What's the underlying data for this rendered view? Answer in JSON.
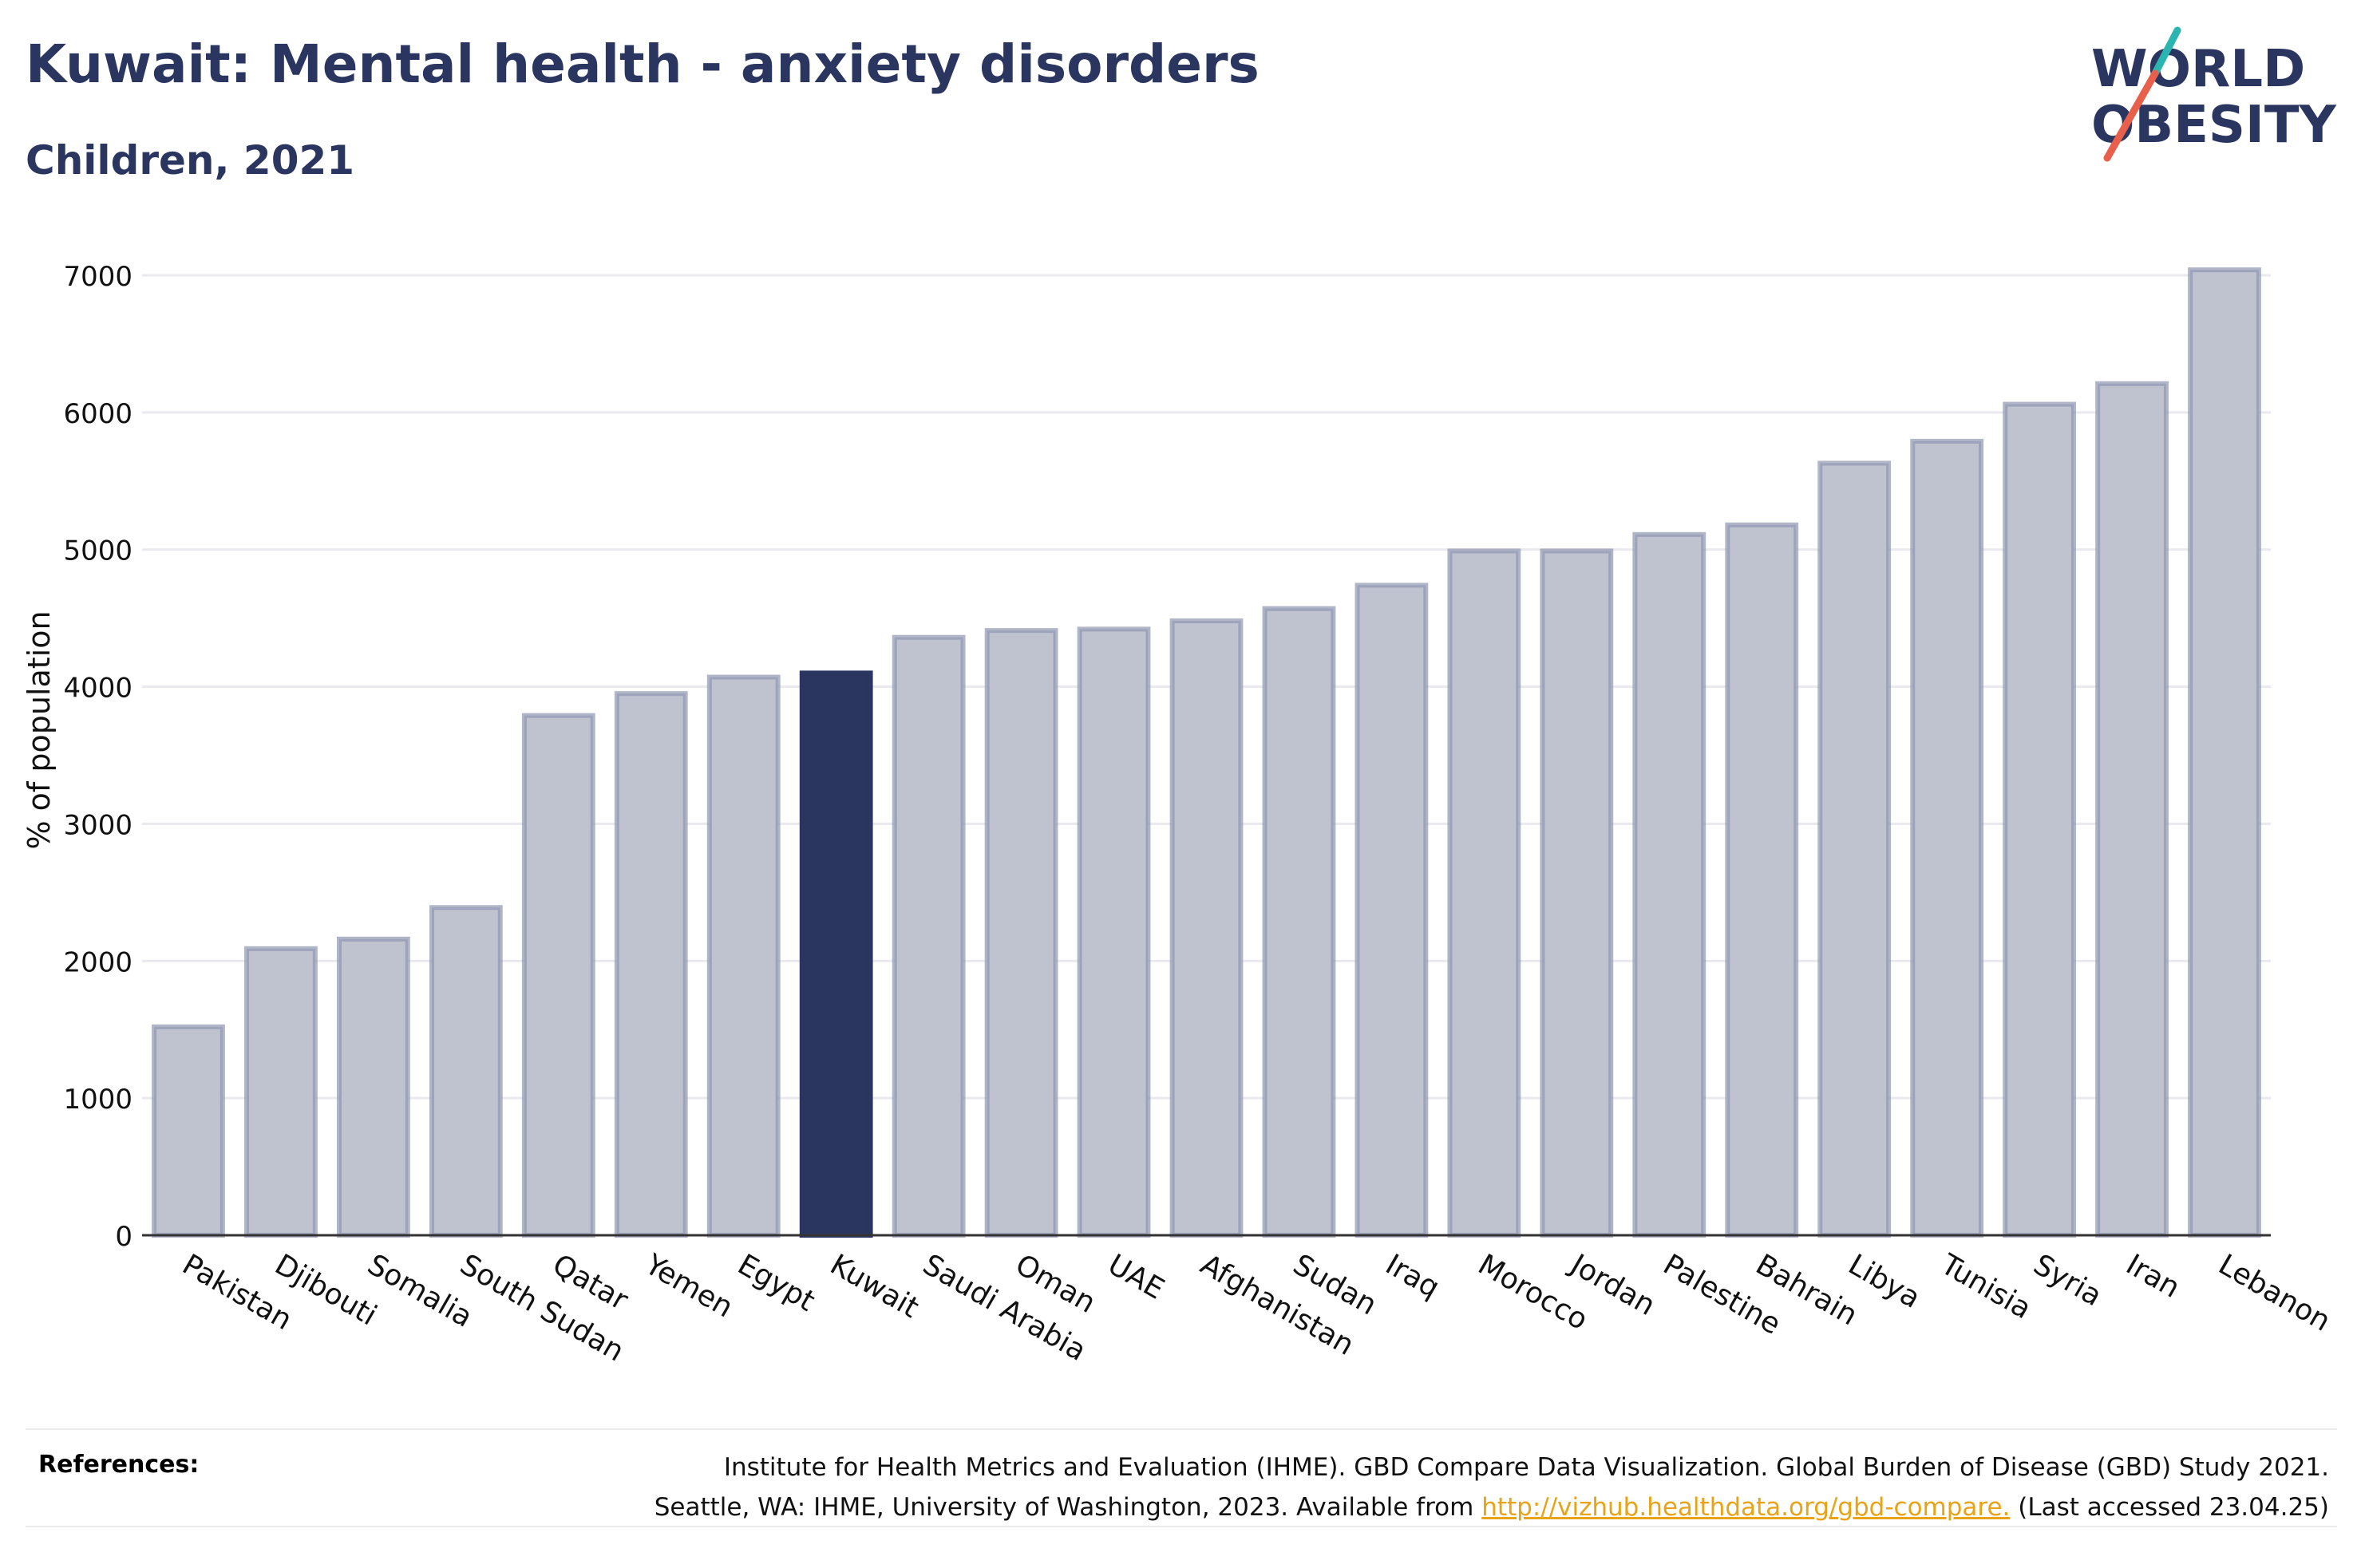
{
  "title": "Kuwait: Mental health - anxiety disorders",
  "subtitle": "Children, 2021",
  "logo": {
    "line1": "WORLD",
    "line2": "OBESITY",
    "accent_colors": [
      "#2bb5b0",
      "#e8604c"
    ]
  },
  "references": {
    "label": "References:",
    "line1": "Institute for Health Metrics and Evaluation (IHME). GBD Compare Data Visualization. Global Burden of Disease (GBD) Study 2021.",
    "line2_prefix": "Seattle, WA: IHME, University of Washington, 2023. Available from",
    "link": "http://vizhub.healthdata.org/gbd-compare.",
    "line2_suffix": "(Last accessed 23.04.25)"
  },
  "colors": {
    "highlight": "#2a3560",
    "bar_fill": "#bfc2cf",
    "bar_stroke": "#8f96b0",
    "grid": "#e9e9ee",
    "title": "#2a3560"
  },
  "chart_data": {
    "type": "bar",
    "ylabel": "% of population",
    "xlabel": "",
    "ylim": [
      0,
      7000
    ],
    "yticks": [
      0,
      1000,
      2000,
      3000,
      4000,
      5000,
      6000,
      7000
    ],
    "grid": true,
    "highlight": "Kuwait",
    "categories": [
      "Pakistan",
      "Djibouti",
      "Somalia",
      "South Sudan",
      "Qatar",
      "Yemen",
      "Egypt",
      "Kuwait",
      "Saudi Arabia",
      "Oman",
      "UAE",
      "Afghanistan",
      "Sudan",
      "Iraq",
      "Morocco",
      "Jordan",
      "Palestine",
      "Bahrain",
      "Libya",
      "Tunisia",
      "Syria",
      "Iran",
      "Lebanon"
    ],
    "values": [
      1520,
      2090,
      2160,
      2390,
      3790,
      3950,
      4070,
      4100,
      4360,
      4410,
      4420,
      4480,
      4570,
      4740,
      4990,
      4990,
      5110,
      5180,
      5630,
      5790,
      6060,
      6210,
      7040
    ]
  }
}
